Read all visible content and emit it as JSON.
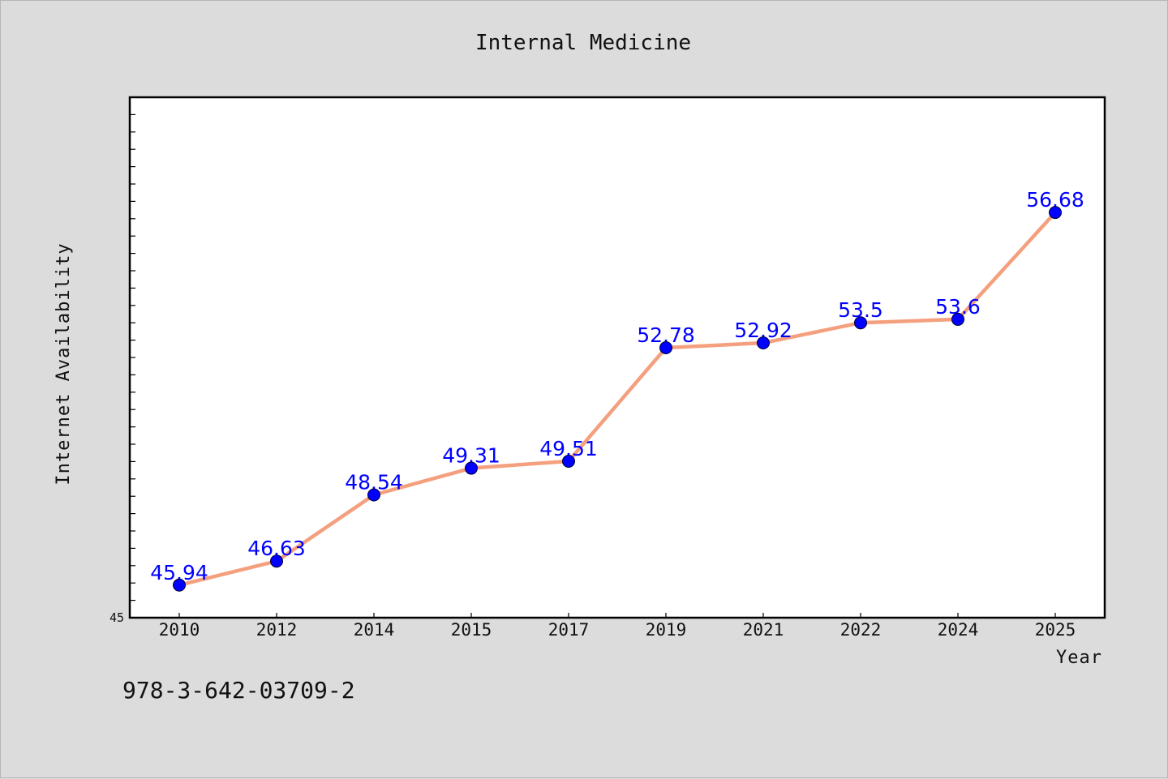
{
  "chart_data": {
    "type": "line",
    "title": "Internal Medicine",
    "xlabel": "Year",
    "ylabel": "Internet Availability",
    "categories": [
      "2010",
      "2012",
      "2014",
      "2015",
      "2017",
      "2019",
      "2021",
      "2022",
      "2024",
      "2025"
    ],
    "series": [
      {
        "values": [
          45.94,
          46.63,
          48.54,
          49.31,
          49.51,
          52.78,
          52.92,
          53.5,
          53.6,
          56.68
        ],
        "labels": [
          "45.94",
          "46.63",
          "48.54",
          "49.31",
          "49.51",
          "52.78",
          "52.92",
          "53.5",
          "53.6",
          "56.68"
        ],
        "line_color": "#f4a07e",
        "marker_color": "#0000ff"
      }
    ],
    "ylim": [
      45,
      60
    ],
    "ytick_min_label": "45",
    "grid": false,
    "legend": "none"
  },
  "footer": {
    "isbn": "978-3-642-03709-2"
  },
  "colors": {
    "background": "#dcdcdc",
    "plot_background": "#ffffff",
    "label_color": "#0000ff"
  }
}
